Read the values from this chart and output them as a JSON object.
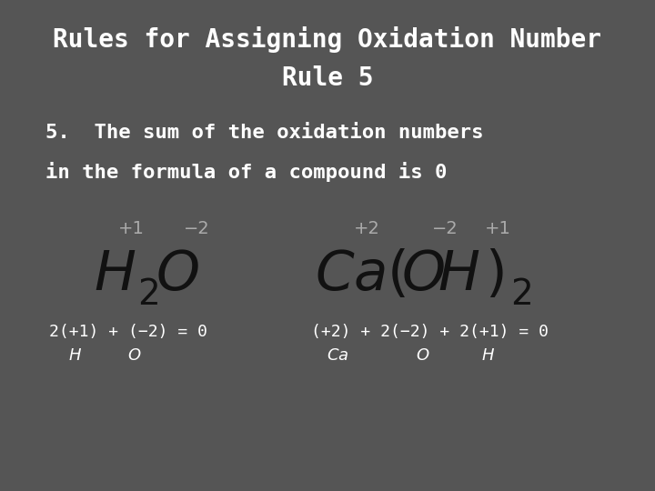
{
  "background_color": "#555555",
  "title_line1": "Rules for Assigning Oxidation Number",
  "title_line2": "Rule 5",
  "title_color": "#ffffff",
  "title_fontsize": 20,
  "body_text_line1": "5.  The sum of the oxidation numbers",
  "body_text_line2": "in the formula of a compound is 0",
  "body_color": "#ffffff",
  "body_fontsize": 16,
  "ox_color": "#aaaaaa",
  "ox_fontsize": 14,
  "formula_color": "#111111",
  "formula_fontsize": 44,
  "sub_fontsize": 28,
  "calc_fontsize": 13,
  "label_fontsize": 13,
  "label_italic_fontsize": 13
}
